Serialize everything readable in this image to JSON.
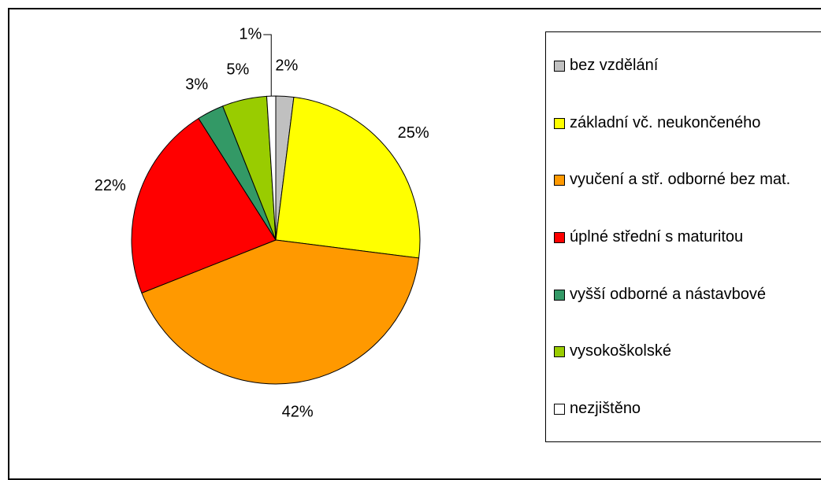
{
  "chart_data": {
    "type": "pie",
    "categories": [
      "bez vzdělání",
      "základní vč. neukončeného",
      "vyučení a stř. odborné bez mat.",
      "úplné střední s maturitou",
      "vyšší odborné a nástavbové",
      "vysokoškolské",
      "nezjištěno"
    ],
    "values": [
      2,
      25,
      42,
      22,
      3,
      5,
      1
    ],
    "value_labels": [
      "2%",
      "25%",
      "42%",
      "22%",
      "3%",
      "5%",
      "1%"
    ],
    "colors": [
      "#c0c0c0",
      "#ffff00",
      "#ff9900",
      "#ff0000",
      "#339966",
      "#99cc00",
      "#ffffff"
    ],
    "legend": "right"
  }
}
